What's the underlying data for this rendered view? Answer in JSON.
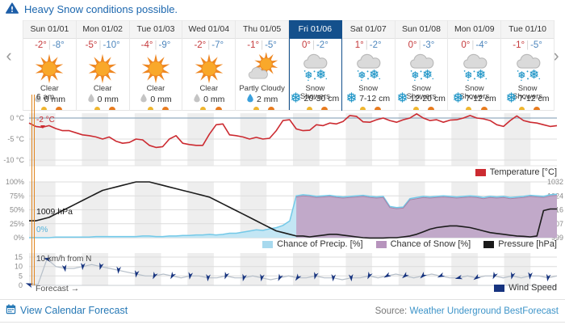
{
  "alert": {
    "text": "Heavy Snow conditions possible."
  },
  "nav": {
    "prev": "‹",
    "next": "›"
  },
  "days": [
    {
      "label": "Sun 01/01",
      "high": "-2°",
      "low": "-8°",
      "icon": "clear",
      "condition": "Clear",
      "precip_icon": "droplet-gray-icon",
      "precip": "0 mm",
      "selected": false
    },
    {
      "label": "Mon 01/02",
      "high": "-5°",
      "low": "-10°",
      "icon": "clear",
      "condition": "Clear",
      "precip_icon": "droplet-gray-icon",
      "precip": "0 mm",
      "selected": false
    },
    {
      "label": "Tue 01/03",
      "high": "-4°",
      "low": "-9°",
      "icon": "clear",
      "condition": "Clear",
      "precip_icon": "droplet-gray-icon",
      "precip": "0 mm",
      "selected": false
    },
    {
      "label": "Wed 01/04",
      "high": "-2°",
      "low": "-7°",
      "icon": "clear",
      "condition": "Clear",
      "precip_icon": "droplet-gray-icon",
      "precip": "0 mm",
      "selected": false
    },
    {
      "label": "Thu 01/05",
      "high": "-1°",
      "low": "-5°",
      "icon": "partly-cloudy",
      "condition": "Partly Cloudy",
      "precip_icon": "droplet-blue-icon",
      "precip": "2 mm",
      "selected": false
    },
    {
      "label": "Fri 01/06",
      "high": "0°",
      "low": "-2°",
      "icon": "snow-showers",
      "condition": "Snow\nShowers",
      "precip_icon": "snowflake-icon",
      "precip": "20-30 cm",
      "selected": true
    },
    {
      "label": "Sat 01/07",
      "high": "1°",
      "low": "-2°",
      "icon": "snow",
      "condition": "Snow",
      "precip_icon": "snowflake-icon",
      "precip": "7-12 cm",
      "selected": false
    },
    {
      "label": "Sun 01/08",
      "high": "0°",
      "low": "-3°",
      "icon": "snow-showers",
      "condition": "Snow\nShowers",
      "precip_icon": "snowflake-icon",
      "precip": "12-20 cm",
      "selected": false
    },
    {
      "label": "Mon 01/09",
      "high": "0°",
      "low": "-4°",
      "icon": "snow-showers",
      "condition": "Snow\nShowers",
      "precip_icon": "snowflake-icon",
      "precip": "7-12 cm",
      "selected": false
    },
    {
      "label": "Tue 01/10",
      "high": "-1°",
      "low": "-5°",
      "icon": "snow-showers",
      "condition": "Snow\nShowers",
      "precip_icon": "snowflake-icon",
      "precip": "7-12 cm",
      "selected": false
    }
  ],
  "annotations": {
    "now_time": "6 am",
    "current_temp": "-2 °C",
    "current_pressure": "1009 hPa",
    "current_precip": "0%",
    "current_wind": "10 km/h from N",
    "forecast_label": "Forecast →"
  },
  "chart_data": [
    {
      "type": "line",
      "name": "temperature",
      "categories": [
        "Sun 01/01",
        "Mon 01/02",
        "Tue 01/03",
        "Wed 01/04",
        "Thu 01/05",
        "Fri 01/06",
        "Sat 01/07",
        "Sun 01/08",
        "Mon 01/09",
        "Tue 01/10"
      ],
      "ylabel_ticks": [
        "0 °C",
        "-5 °C",
        "-10 °C"
      ],
      "ytick_values": [
        0,
        -5,
        -10
      ],
      "ylim": [
        -11.3,
        1.2
      ],
      "grid": true,
      "legend_position": "bottom-right",
      "series": [
        {
          "name": "Temperature [°C]",
          "color": "#cc2b31",
          "values": [
            -1.2,
            -2,
            -2.2,
            -1.8,
            -2.5,
            -3,
            -3,
            -3.5,
            -4,
            -4.2,
            -4.5,
            -5,
            -4.5,
            -5.5,
            -6,
            -5.8,
            -5,
            -5.2,
            -6.5,
            -7,
            -6.8,
            -5,
            -4.2,
            -6,
            -6.3,
            -6.5,
            -6.5,
            -3.8,
            -1.6,
            -1.4,
            -4,
            -4.2,
            -4.5,
            -5,
            -4.6,
            -5,
            -4.8,
            -3,
            -0.6,
            -0.4,
            -2.6,
            -3,
            -2.9,
            -1.6,
            -1.8,
            -1.2,
            -1.4,
            -0.8,
            0.6,
            0.4,
            -0.9,
            -1,
            -0.4,
            0,
            -0.6,
            -1,
            -0.4,
            0,
            1,
            0,
            -0.6,
            -0.4,
            -1,
            -0.5,
            -0.4,
            0,
            0.6,
            0,
            -0.2,
            -0.6,
            -1.6,
            -2,
            -0.6,
            0.5,
            -0.6,
            -1,
            -1.2,
            -1.6,
            -2,
            -1.8
          ]
        }
      ],
      "legend": [
        {
          "label": "Temperature [°C]",
          "color": "#cc2b31"
        }
      ]
    },
    {
      "type": "area+line",
      "name": "precip-snow-pressure",
      "categories": [
        "Sun 01/01",
        "Mon 01/02",
        "Tue 01/03",
        "Wed 01/04",
        "Thu 01/05",
        "Fri 01/06",
        "Sat 01/07",
        "Sun 01/08",
        "Mon 01/09",
        "Tue 01/10"
      ],
      "yticks_left": [
        "100%",
        "75%",
        "50%",
        "25%",
        "0%"
      ],
      "yticks_right": [
        "1032",
        "1024",
        "1016",
        "1007",
        "999"
      ],
      "ylim_left": [
        0,
        100
      ],
      "ylim_right": [
        999,
        1032
      ],
      "grid": true,
      "legend_position": "bottom-right",
      "series": [
        {
          "name": "Chance of Precip. [%]",
          "kind": "area",
          "line_color": "#74c9e8",
          "fill_color": "#c3e6f4",
          "values": [
            0,
            0,
            0,
            0,
            1,
            1,
            1,
            1,
            1,
            1,
            2,
            2,
            2,
            2,
            2,
            2,
            2,
            3,
            3,
            2,
            2,
            3,
            3,
            4,
            4,
            5,
            5,
            6,
            5,
            6,
            8,
            8,
            10,
            12,
            14,
            13,
            16,
            18,
            22,
            30,
            75,
            77,
            76,
            74,
            75,
            76,
            74,
            73,
            74,
            75,
            76,
            74,
            73,
            74,
            56,
            54,
            55,
            70,
            72,
            74,
            73,
            74,
            75,
            74,
            73,
            74,
            75,
            74,
            72,
            74,
            73,
            74,
            72,
            73,
            74,
            76,
            75,
            74,
            77,
            78
          ]
        },
        {
          "name": "Chance of Snow [%]",
          "kind": "area",
          "line_color": "#a782a7",
          "fill_color": "#c19ec1",
          "values": [
            0,
            0,
            0,
            0,
            0,
            0,
            0,
            0,
            0,
            0,
            0,
            0,
            0,
            0,
            0,
            0,
            0,
            0,
            0,
            0,
            0,
            0,
            0,
            0,
            0,
            0,
            0,
            0,
            0,
            0,
            0,
            0,
            0,
            0,
            0,
            0,
            0,
            0,
            0,
            0,
            73,
            75,
            74,
            72,
            73,
            74,
            72,
            71,
            72,
            73,
            74,
            72,
            71,
            72,
            54,
            52,
            53,
            68,
            70,
            72,
            71,
            72,
            73,
            72,
            71,
            72,
            73,
            72,
            70,
            72,
            71,
            72,
            70,
            71,
            72,
            74,
            73,
            72,
            75,
            76
          ]
        },
        {
          "name": "Pressure [hPa]",
          "kind": "line",
          "line_color": "#1c1c1c",
          "values": [
            1009,
            1009,
            1010,
            1011,
            1013,
            1015,
            1017,
            1019,
            1021,
            1023,
            1025,
            1027,
            1028,
            1029,
            1030,
            1031,
            1032,
            1032,
            1032,
            1031,
            1030,
            1029,
            1028,
            1027,
            1026,
            1025,
            1024,
            1023,
            1021,
            1019,
            1017,
            1015,
            1013,
            1011,
            1009,
            1007,
            1005,
            1003,
            1002,
            1001,
            1000,
            1000,
            999.5,
            1000,
            1000.5,
            1001,
            1001,
            1000.5,
            1000,
            999.5,
            999,
            998.8,
            998.8,
            998.8,
            999,
            999,
            999.5,
            1000,
            1001,
            1002.5,
            1004,
            1005,
            1005.5,
            1006,
            1006,
            1005.5,
            1005,
            1004,
            1003,
            1002,
            1001.5,
            1001,
            1000.5,
            1000,
            999.8,
            999.5,
            1000,
            1015,
            1016,
            1016
          ]
        }
      ],
      "legend": [
        {
          "label": "Chance of Precip. [%]",
          "color": "#a7d9ee"
        },
        {
          "label": "Chance of Snow [%]",
          "color": "#b794bd"
        },
        {
          "label": "Pressure [hPa]",
          "color": "#1a1a1a"
        }
      ]
    },
    {
      "type": "line",
      "name": "wind",
      "categories": [
        "Sun 01/01",
        "Mon 01/02",
        "Tue 01/03",
        "Wed 01/04",
        "Thu 01/05",
        "Fri 01/06",
        "Sat 01/07",
        "Sun 01/08",
        "Mon 01/09",
        "Tue 01/10"
      ],
      "yticks": [
        "15",
        "10",
        "5",
        "0"
      ],
      "ytick_values": [
        15,
        10,
        5,
        0
      ],
      "ylim": [
        0,
        16
      ],
      "grid": true,
      "legend_position": "bottom-right",
      "series": [
        {
          "name": "Wind Speed",
          "color": "#16337f",
          "line_color": "#b6bfc9",
          "values": [
            0.5,
            0.5,
            14,
            10,
            9,
            9,
            10,
            11,
            10,
            9,
            8,
            7,
            6,
            5,
            5,
            6,
            5,
            4,
            5,
            5,
            4,
            4,
            5,
            4,
            4,
            5,
            4,
            3,
            4,
            5,
            4,
            4,
            5,
            4,
            4,
            3,
            4,
            4,
            5,
            4,
            5,
            6,
            5,
            4,
            5,
            6,
            5,
            4,
            4,
            5,
            4,
            5,
            5,
            4,
            5,
            4,
            5,
            5,
            4,
            5
          ],
          "marker_angles_deg": [
            200,
            190,
            80,
            95,
            105,
            95,
            100,
            115,
            120,
            100,
            95,
            110,
            105,
            100,
            115,
            125,
            105,
            95,
            85,
            115,
            150,
            140,
            135,
            155,
            165,
            145,
            115,
            105,
            95,
            100
          ]
        }
      ],
      "legend": [
        {
          "label": "Wind Speed",
          "color": "#16337f"
        }
      ]
    }
  ],
  "footer": {
    "link_label": "View Calendar Forecast",
    "source_label": "Source:",
    "source_link_label": "Weather Underground BestForecast"
  }
}
